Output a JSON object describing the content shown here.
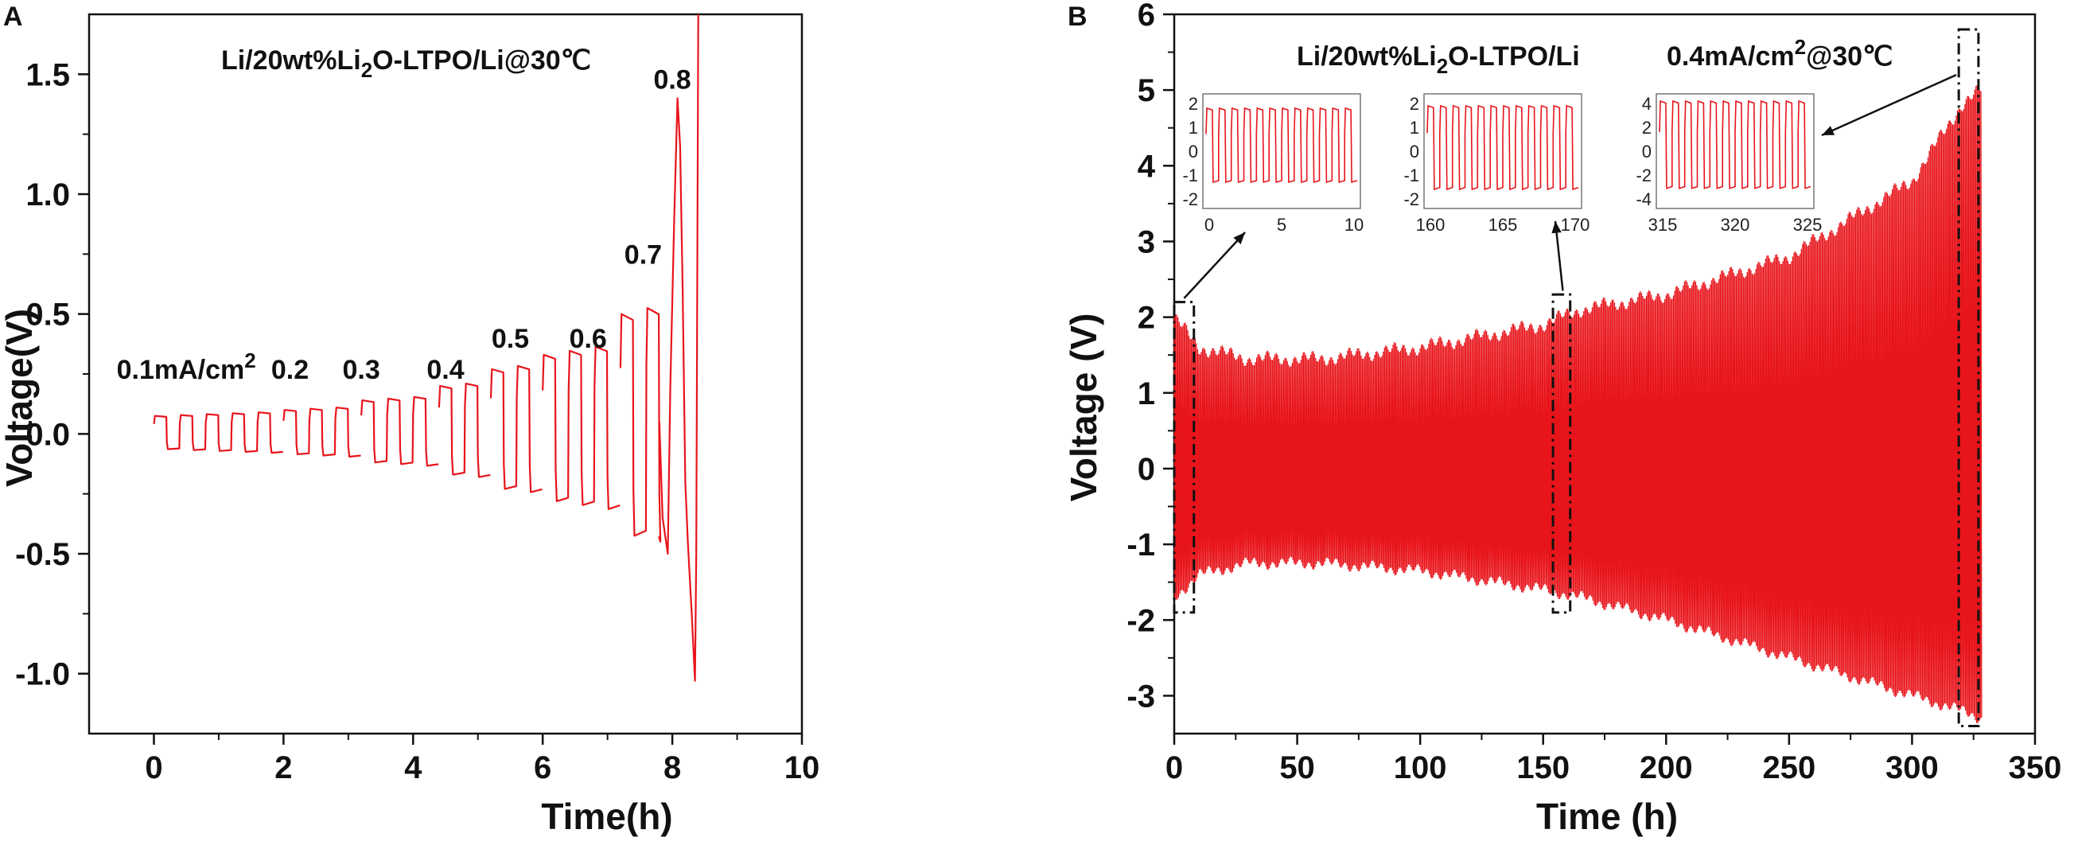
{
  "colors": {
    "trace": "#e8141b",
    "axis": "#111111",
    "box": "#111111"
  },
  "chart_data": [
    {
      "type": "line",
      "panel": "A",
      "title": "Li/20wt%Li",
      "title_sub": "2",
      "title_rest": "O-LTPO/Li@30℃",
      "xlabel": "Time(h)",
      "ylabel": "Voltage(V)",
      "xlim": [
        -1,
        10
      ],
      "ylim": [
        -1.25,
        1.75
      ],
      "xticks": [
        0,
        2,
        4,
        6,
        8,
        10
      ],
      "xtick_labels": [
        "0",
        "2",
        "4",
        "6",
        "8",
        "10"
      ],
      "yticks": [
        -1.0,
        -0.5,
        0.0,
        0.5,
        1.0,
        1.5
      ],
      "ytick_labels": [
        "-1.0",
        "-0.5",
        "0.0",
        "0.5",
        "1.0",
        "1.5"
      ],
      "rate_labels": [
        {
          "text": "0.1mA/cm",
          "sup": "2",
          "x": 0.5,
          "y": 0.23
        },
        {
          "text": "0.2",
          "x": 2.1,
          "y": 0.23
        },
        {
          "text": "0.3",
          "x": 3.2,
          "y": 0.23
        },
        {
          "text": "0.4",
          "x": 4.5,
          "y": 0.23
        },
        {
          "text": "0.5",
          "x": 5.5,
          "y": 0.36
        },
        {
          "text": "0.6",
          "x": 6.7,
          "y": 0.36
        },
        {
          "text": "0.7",
          "x": 7.55,
          "y": 0.71
        },
        {
          "text": "0.8",
          "x": 8.0,
          "y": 1.44
        }
      ],
      "segments": [
        {
          "rate": "0.1",
          "start": 0.0,
          "end": 2.0,
          "cycles": 5,
          "amp": 0.075
        },
        {
          "rate": "0.2",
          "start": 2.0,
          "end": 3.2,
          "cycles": 3,
          "amp": 0.1
        },
        {
          "rate": "0.3",
          "start": 3.2,
          "end": 4.4,
          "cycles": 3,
          "amp": 0.14
        },
        {
          "rate": "0.4",
          "start": 4.4,
          "end": 5.2,
          "cycles": 2,
          "amp": 0.2
        },
        {
          "rate": "0.5",
          "start": 5.2,
          "end": 6.0,
          "cycles": 2,
          "amp": 0.27
        },
        {
          "rate": "0.6",
          "start": 6.0,
          "end": 7.2,
          "cycles": 3,
          "amp": 0.33
        },
        {
          "rate": "0.7",
          "start": 7.2,
          "end": 7.8,
          "cycles": 1.5,
          "amp": 0.5
        },
        {
          "rate": "0.8",
          "start": 7.8,
          "end": 8.4,
          "cycles": 1,
          "amp": 1.3
        }
      ]
    },
    {
      "type": "line",
      "panel": "B",
      "title": "Li/20wt%Li",
      "title_sub": "2",
      "title_rest": "O-LTPO/Li",
      "condition": "0.4mA/cm",
      "condition_sup": "2",
      "condition_rest": "@30℃",
      "xlabel": "Time (h)",
      "ylabel": "Voltage (V)",
      "xlim": [
        0,
        350
      ],
      "ylim": [
        -3.5,
        6
      ],
      "xticks": [
        0,
        50,
        100,
        150,
        200,
        250,
        300,
        350
      ],
      "xtick_labels": [
        "0",
        "50",
        "100",
        "150",
        "200",
        "250",
        "300",
        "350"
      ],
      "yticks": [
        -3,
        -2,
        -1,
        0,
        1,
        2,
        3,
        4,
        5,
        6
      ],
      "ytick_labels": [
        "-3",
        "-2",
        "-1",
        "0",
        "1",
        "2",
        "3",
        "4",
        "5",
        "6"
      ],
      "envelope": {
        "time": [
          0,
          10,
          30,
          60,
          100,
          150,
          165,
          200,
          250,
          300,
          320,
          328
        ],
        "upper": [
          2.0,
          1.6,
          1.45,
          1.45,
          1.6,
          1.9,
          2.1,
          2.3,
          2.8,
          3.8,
          4.8,
          5.0
        ],
        "lower": [
          -1.7,
          -1.4,
          -1.25,
          -1.25,
          -1.35,
          -1.6,
          -1.7,
          -2.0,
          -2.5,
          -3.0,
          -3.2,
          -3.3
        ]
      },
      "highlight_boxes": [
        {
          "name": "box-start",
          "x0": 0,
          "x1": 8,
          "y0": -1.9,
          "y1": 2.2
        },
        {
          "name": "box-mid",
          "x0": 154,
          "x1": 161,
          "y0": -1.9,
          "y1": 2.3
        },
        {
          "name": "box-end",
          "x0": 319,
          "x1": 327,
          "y0": -3.4,
          "y1": 5.8
        }
      ],
      "insets": [
        {
          "name": "inset-start",
          "xticks": [
            "0",
            "5",
            "10"
          ],
          "yticks": [
            "2",
            "1",
            "0",
            "-1",
            "-2"
          ],
          "upper": 1.8,
          "lower": -1.3,
          "range": [
            -2.2,
            2.2
          ]
        },
        {
          "name": "inset-mid",
          "xticks": [
            "160",
            "165",
            "170"
          ],
          "yticks": [
            "2",
            "1",
            "0",
            "-1",
            "-2"
          ],
          "upper": 1.9,
          "lower": -1.6,
          "range": [
            -2.2,
            2.2
          ]
        },
        {
          "name": "inset-end",
          "xticks": [
            "315",
            "320",
            "325"
          ],
          "yticks": [
            "4",
            "2",
            "0",
            "-2",
            "-4"
          ],
          "upper": 4.4,
          "lower": -3.0,
          "range": [
            -4.3,
            4.6
          ]
        }
      ]
    }
  ]
}
